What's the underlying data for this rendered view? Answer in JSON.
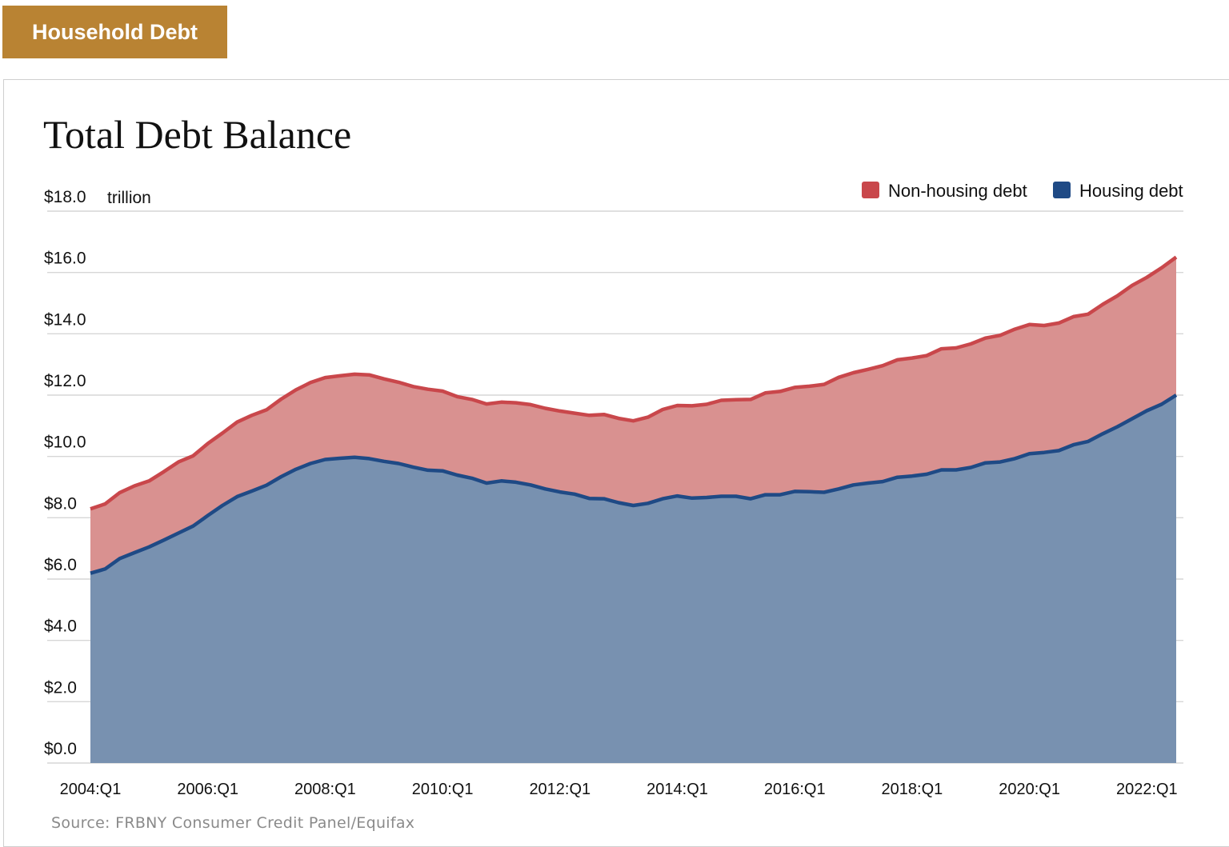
{
  "header": {
    "tab_label": "Household Debt"
  },
  "source": "Source: FRBNY Consumer Credit Panel/Equifax",
  "colors": {
    "housing_line": "#1f4a85",
    "housing_fill": "#7891b0",
    "nonhousing_line": "#c9474b",
    "nonhousing_fill": "#d99190",
    "grid": "#d6d6d6",
    "header_bg": "#b98333"
  },
  "chart_data": {
    "type": "area",
    "stacked": true,
    "title": "Total Debt Balance",
    "unit_label": "trillion",
    "ylim": [
      0,
      18
    ],
    "y_ticks": [
      "$0.0",
      "$2.0",
      "$4.0",
      "$6.0",
      "$8.0",
      "$10.0",
      "$12.0",
      "$14.0",
      "$16.0",
      "$18.0"
    ],
    "x_ticks": [
      "2004:Q1",
      "2006:Q1",
      "2008:Q1",
      "2010:Q1",
      "2012:Q1",
      "2014:Q1",
      "2016:Q1",
      "2018:Q1",
      "2020:Q1",
      "2022:Q1"
    ],
    "x_start": "2004:Q1",
    "x_end": "2022:Q2",
    "grid": true,
    "legend_position": "top-right",
    "total": [
      8.29,
      8.45,
      8.82,
      9.04,
      9.2,
      9.5,
      9.82,
      10.02,
      10.42,
      10.76,
      11.12,
      11.34,
      11.52,
      11.87,
      12.17,
      12.41,
      12.57,
      12.63,
      12.68,
      12.66,
      12.53,
      12.42,
      12.28,
      12.19,
      12.13,
      11.95,
      11.86,
      11.71,
      11.77,
      11.75,
      11.69,
      11.57,
      11.48,
      11.41,
      11.34,
      11.37,
      11.24,
      11.16,
      11.28,
      11.53,
      11.66,
      11.65,
      11.7,
      11.83,
      11.85,
      11.86,
      12.07,
      12.12,
      12.25,
      12.29,
      12.35,
      12.58,
      12.73,
      12.84,
      12.96,
      13.15,
      13.21,
      13.29,
      13.51,
      13.54,
      13.67,
      13.86,
      13.95,
      14.15,
      14.3,
      14.27,
      14.35,
      14.56,
      14.64,
      14.96,
      15.24,
      15.58,
      15.84,
      16.15,
      16.5
    ],
    "series": [
      {
        "name": "Housing debt",
        "values": [
          6.19,
          6.33,
          6.67,
          6.86,
          7.05,
          7.27,
          7.5,
          7.73,
          8.07,
          8.4,
          8.69,
          8.87,
          9.06,
          9.34,
          9.58,
          9.77,
          9.9,
          9.94,
          9.97,
          9.93,
          9.84,
          9.77,
          9.65,
          9.55,
          9.53,
          9.39,
          9.29,
          9.13,
          9.2,
          9.16,
          9.07,
          8.94,
          8.84,
          8.77,
          8.63,
          8.62,
          8.49,
          8.4,
          8.47,
          8.62,
          8.71,
          8.64,
          8.66,
          8.7,
          8.7,
          8.62,
          8.75,
          8.75,
          8.86,
          8.85,
          8.83,
          8.94,
          9.07,
          9.13,
          9.18,
          9.32,
          9.36,
          9.42,
          9.56,
          9.56,
          9.64,
          9.79,
          9.82,
          9.93,
          10.09,
          10.13,
          10.19,
          10.38,
          10.49,
          10.74,
          10.97,
          11.23,
          11.49,
          11.7,
          12.0
        ]
      },
      {
        "name": "Non-housing debt",
        "values": [
          2.1,
          2.12,
          2.15,
          2.18,
          2.15,
          2.23,
          2.32,
          2.29,
          2.35,
          2.36,
          2.43,
          2.47,
          2.46,
          2.53,
          2.59,
          2.64,
          2.67,
          2.69,
          2.71,
          2.73,
          2.69,
          2.65,
          2.63,
          2.64,
          2.6,
          2.56,
          2.57,
          2.58,
          2.57,
          2.59,
          2.62,
          2.63,
          2.64,
          2.64,
          2.71,
          2.75,
          2.75,
          2.76,
          2.81,
          2.91,
          2.95,
          3.01,
          3.04,
          3.13,
          3.15,
          3.24,
          3.32,
          3.37,
          3.39,
          3.44,
          3.52,
          3.64,
          3.66,
          3.71,
          3.78,
          3.83,
          3.85,
          3.87,
          3.95,
          3.98,
          4.03,
          4.07,
          4.13,
          4.22,
          4.21,
          4.14,
          4.16,
          4.18,
          4.15,
          4.22,
          4.27,
          4.35,
          4.35,
          4.45,
          4.5
        ]
      }
    ]
  }
}
